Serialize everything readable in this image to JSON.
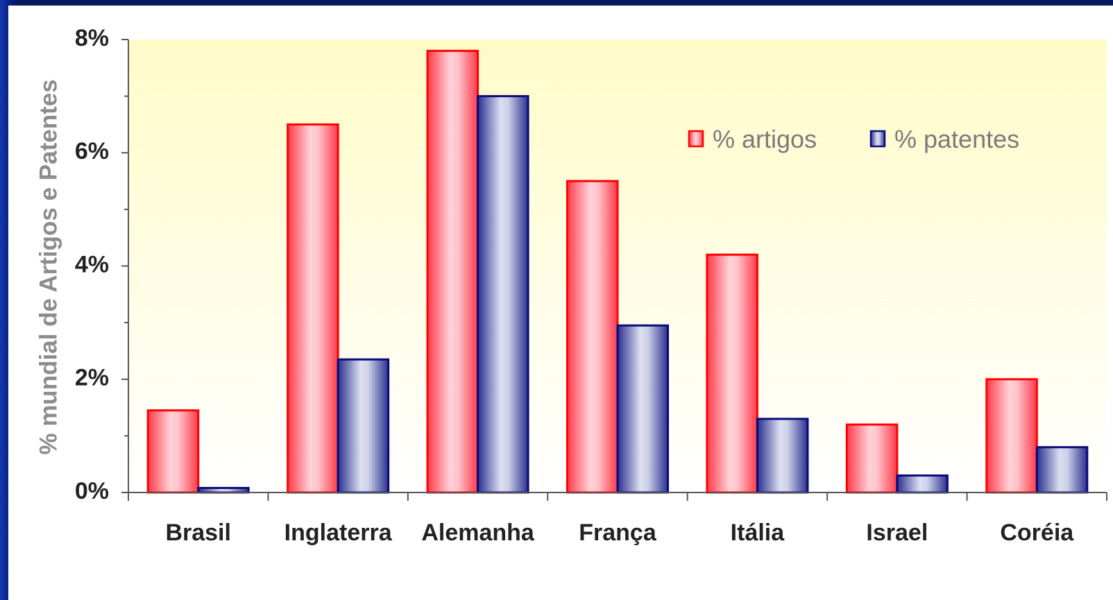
{
  "chart_data": {
    "type": "bar",
    "categories": [
      "Brasil",
      "Inglaterra",
      "Alemanha",
      "França",
      "Itália",
      "Israel",
      "Coréia"
    ],
    "series": [
      {
        "name": "% artigos",
        "values": [
          1.45,
          6.5,
          7.8,
          5.5,
          4.2,
          1.2,
          2.0
        ]
      },
      {
        "name": "% patentes",
        "values": [
          0.08,
          2.35,
          7.0,
          2.95,
          1.3,
          0.3,
          0.8
        ]
      }
    ],
    "ylabel": "% mundial de Artigos e Patentes",
    "xlabel": "",
    "ylim": [
      0,
      8
    ],
    "yticks": [
      {
        "value": 0,
        "label": "0%"
      },
      {
        "value": 2,
        "label": "2%"
      },
      {
        "value": 4,
        "label": "4%"
      },
      {
        "value": 6,
        "label": "6%"
      },
      {
        "value": 8,
        "label": "8%"
      }
    ],
    "minor_ticks": [
      1,
      3,
      5,
      7
    ],
    "legend_position": "top-right",
    "grid": false
  },
  "colors": {
    "frame_dark": "#07185e",
    "frame_light": "#1438b0",
    "plot_top": "#fffbc8",
    "plot_bottom": "#ffffff",
    "artigos_fill": "#ffc0c8",
    "artigos_edge": "#ff0000",
    "patentes_fill": "#ccd0e8",
    "patentes_edge": "#0a0a78",
    "axis": "#555555"
  }
}
